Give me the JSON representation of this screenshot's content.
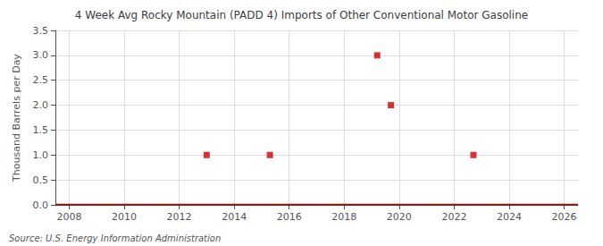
{
  "chart_data": {
    "type": "line",
    "title": "4 Week Avg Rocky Mountain (PADD 4) Imports of Other Conventional Motor Gasoline",
    "ylabel": "Thousand Barrels per Day",
    "annotations": [
      "Source: U.S. Energy Information Administration"
    ],
    "series": [
      {
        "type": "line",
        "color": "#8b1a1a",
        "x": [
          2007.5,
          2026.5
        ],
        "values": [
          0.0,
          0.0
        ]
      },
      {
        "type": "scatter",
        "marker": "square",
        "color": "#cc0000",
        "x": [
          2013.0,
          2015.3,
          2019.2,
          2019.7,
          2022.7
        ],
        "values": [
          1.0,
          1.0,
          3.0,
          2.0,
          1.0
        ]
      }
    ],
    "xlim": [
      2007.5,
      2026.5
    ],
    "xticks": [
      2008,
      2010,
      2012,
      2014,
      2016,
      2018,
      2020,
      2022,
      2024,
      2026
    ],
    "ylim": [
      0.0,
      3.5
    ],
    "yticks": [
      {
        "value": 0.0,
        "label": "0.0"
      },
      0.5,
      {
        "value": 1.0,
        "label": "1.0"
      },
      1.5,
      {
        "value": 2.0,
        "label": "2.0"
      },
      2.5,
      {
        "value": 3.0,
        "label": "3.0"
      },
      3.5
    ],
    "grid": true
  }
}
